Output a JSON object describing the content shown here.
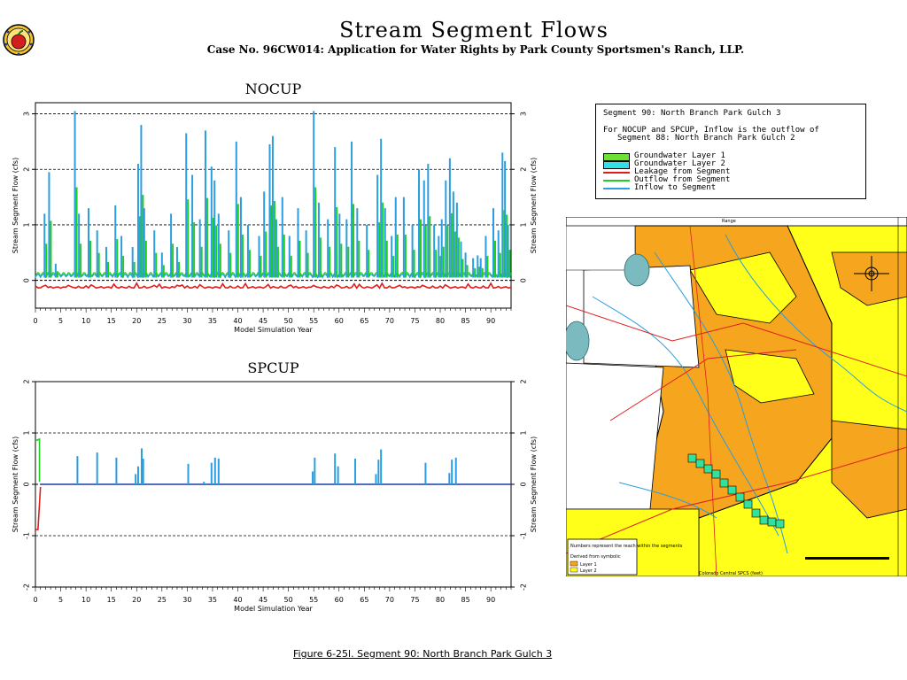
{
  "header": {
    "title": "Stream Segment Flows",
    "subtitle": "Case No. 96CW014: Application for Water Rights by Park County Sportsmen's Ranch, LLP."
  },
  "logo": {
    "icon": "apple-seal-icon"
  },
  "legend": {
    "line1": "Segment 90: North Branch Park Gulch 3",
    "line2": "For NOCUP and SPCUP, Inflow is the outflow of",
    "line3": "Segment  88: North Branch Park Gulch 2",
    "items": [
      {
        "label": "Groundwater Layer 1",
        "kind": "box",
        "color": "#6ee033"
      },
      {
        "label": "Groundwater Layer 2",
        "kind": "box",
        "color": "#33e0e8"
      },
      {
        "label": "Leakage from Segment",
        "kind": "line",
        "color": "#e01e1e"
      },
      {
        "label": "Outflow from Segment",
        "kind": "line",
        "color": "#22cc22"
      },
      {
        "label": "Inflow to Segment",
        "kind": "line",
        "color": "#2a9ee0"
      }
    ]
  },
  "map": {
    "legend_text": "Numbers represent the reach within the segments",
    "legend_text2": "Derived from symbolic",
    "legend_layer1": "Layer 1",
    "legend_layer2": "Layer 2",
    "axis_label": "Colorado Central SPCS (feet)",
    "range_label": "Range"
  },
  "caption": "Figure 6-25l.  Segment 90: North Branch Park Gulch 3",
  "chart_data": [
    {
      "type": "line",
      "title": "NOCUP",
      "xlabel": "Model Simulation Year",
      "ylabel": "Stream Segment Flow (cfs)",
      "xlim": [
        0,
        94
      ],
      "ylim": [
        -0.5,
        3.2
      ],
      "xticks": [
        0,
        5,
        10,
        15,
        20,
        25,
        30,
        35,
        40,
        45,
        50,
        55,
        60,
        65,
        70,
        75,
        80,
        85,
        90
      ],
      "yticks": [
        0,
        1,
        2,
        3
      ],
      "grid": "dashed horizontal",
      "series": [
        {
          "name": "Inflow to Segment",
          "color": "#2a9ee0",
          "peaks": [
            [
              1.8,
              1.2
            ],
            [
              2.7,
              1.95
            ],
            [
              4,
              0.3
            ],
            [
              7.8,
              3.05
            ],
            [
              8.6,
              1.2
            ],
            [
              10.5,
              1.3
            ],
            [
              12.2,
              0.9
            ],
            [
              14,
              0.6
            ],
            [
              15.8,
              1.35
            ],
            [
              17,
              0.8
            ],
            [
              19.2,
              0.6
            ],
            [
              20.3,
              2.1
            ],
            [
              20.9,
              2.8
            ],
            [
              21.5,
              1.3
            ],
            [
              23.5,
              0.9
            ],
            [
              25,
              0.5
            ],
            [
              26.8,
              1.2
            ],
            [
              28,
              0.6
            ],
            [
              29.8,
              2.65
            ],
            [
              31,
              1.9
            ],
            [
              32.5,
              1.1
            ],
            [
              33.6,
              2.7
            ],
            [
              34.8,
              2.05
            ],
            [
              35.4,
              1.8
            ],
            [
              36.2,
              1.2
            ],
            [
              38.2,
              0.9
            ],
            [
              39.7,
              2.5
            ],
            [
              40.6,
              1.5
            ],
            [
              42,
              1
            ],
            [
              44.2,
              0.8
            ],
            [
              45.2,
              1.6
            ],
            [
              46.3,
              2.45
            ],
            [
              46.9,
              2.6
            ],
            [
              47.6,
              1.1
            ],
            [
              48.8,
              1.5
            ],
            [
              50.2,
              0.8
            ],
            [
              51.9,
              1.3
            ],
            [
              53.5,
              0.9
            ],
            [
              55,
              3.05
            ],
            [
              56,
              1.4
            ],
            [
              57.8,
              1.1
            ],
            [
              59.2,
              2.4
            ],
            [
              60.1,
              1.2
            ],
            [
              61.5,
              1.1
            ],
            [
              62.5,
              2.5
            ],
            [
              63.6,
              1.3
            ],
            [
              65.5,
              1.0
            ],
            [
              67.6,
              1.9
            ],
            [
              68.3,
              2.55
            ],
            [
              69.1,
              1.3
            ],
            [
              70.4,
              0.8
            ],
            [
              71.2,
              1.5
            ],
            [
              72.8,
              1.5
            ],
            [
              74.5,
              1.0
            ],
            [
              75.8,
              2.0
            ],
            [
              76.8,
              1.8
            ],
            [
              77.6,
              2.1
            ],
            [
              78.8,
              1.0
            ],
            [
              79.7,
              0.8
            ],
            [
              80.3,
              1.1
            ],
            [
              81.1,
              1.8
            ],
            [
              81.9,
              2.2
            ],
            [
              82.6,
              1.6
            ],
            [
              83.3,
              1.4
            ],
            [
              84.1,
              0.7
            ],
            [
              85,
              0.5
            ],
            [
              86.5,
              0.4
            ],
            [
              87.4,
              0.45
            ],
            [
              88,
              0.4
            ],
            [
              89,
              0.8
            ],
            [
              90.5,
              1.3
            ],
            [
              91.5,
              0.9
            ],
            [
              92.3,
              2.3
            ],
            [
              92.8,
              2.15
            ],
            [
              93.4,
              1.0
            ]
          ]
        },
        {
          "name": "Outflow from Segment",
          "color": "#22cc22",
          "values_note": ""
        },
        {
          "name": "Leakage from Segment",
          "color": "#e01e1e",
          "baseline": -0.1
        }
      ]
    },
    {
      "type": "line",
      "title": "SPCUP",
      "xlabel": "Model Simulation Year",
      "ylabel": "Stream Segment Flow (cfs)",
      "xlim": [
        0,
        94
      ],
      "ylim": [
        -2,
        2
      ],
      "xticks": [
        0,
        5,
        10,
        15,
        20,
        25,
        30,
        35,
        40,
        45,
        50,
        55,
        60,
        65,
        70,
        75,
        80,
        85,
        90
      ],
      "yticks": [
        -2,
        -1,
        0,
        1,
        2
      ],
      "ytick_labels": [
        "-2",
        "-1",
        "0",
        "1",
        "2"
      ],
      "grid": "dashed horizontal",
      "series": [
        {
          "name": "Inflow to Segment",
          "color": "#2a9ee0",
          "peaks": [
            [
              8.3,
              0.55
            ],
            [
              12.2,
              0.62
            ],
            [
              16,
              0.52
            ],
            [
              19.8,
              0.2
            ],
            [
              20.3,
              0.35
            ],
            [
              21,
              0.7
            ],
            [
              21.3,
              0.5
            ],
            [
              30.2,
              0.4
            ],
            [
              33.3,
              0.05
            ],
            [
              34.8,
              0.42
            ],
            [
              35.5,
              0.52
            ],
            [
              36.2,
              0.5
            ],
            [
              54.8,
              0.25
            ],
            [
              55.2,
              0.52
            ],
            [
              59.2,
              0.6
            ],
            [
              59.8,
              0.35
            ],
            [
              63.2,
              0.5
            ],
            [
              67.3,
              0.2
            ],
            [
              67.8,
              0.48
            ],
            [
              68.3,
              0.68
            ],
            [
              77.1,
              0.42
            ],
            [
              79.8,
              0.02
            ],
            [
              81.8,
              0.22
            ],
            [
              82.3,
              0.48
            ],
            [
              83.1,
              0.52
            ]
          ]
        },
        {
          "name": "Outflow from Segment",
          "color": "#22cc22",
          "start": [
            [
              0,
              0.85
            ],
            [
              0.8,
              0.88
            ],
            [
              0.8,
              0.05
            ]
          ]
        },
        {
          "name": "Leakage from Segment",
          "color": "#e01e1e",
          "start": [
            [
              0,
              -0.88
            ],
            [
              0.5,
              -0.88
            ],
            [
              1,
              -0.05
            ]
          ]
        }
      ]
    }
  ]
}
